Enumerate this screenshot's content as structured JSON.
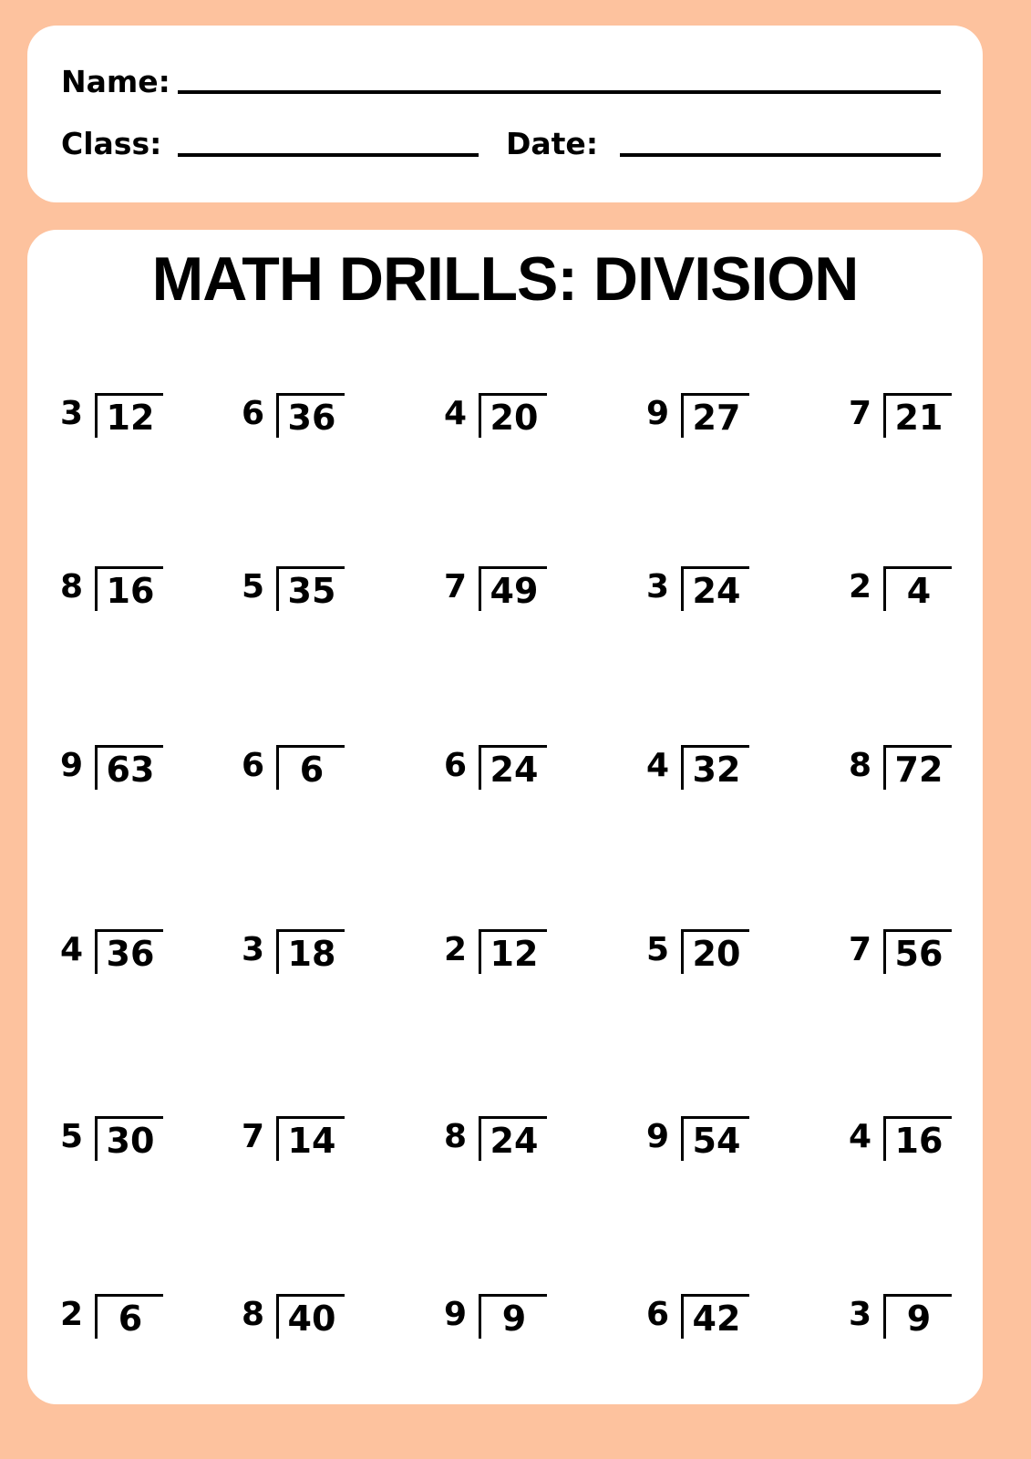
{
  "header": {
    "name_label": "Name:",
    "class_label": "Class:",
    "date_label": "Date:"
  },
  "title": "MATH DRILLS: DIVISION",
  "colors": {
    "background": "#fdc29e",
    "card": "#ffffff",
    "ink": "#000000"
  },
  "problems": [
    [
      {
        "divisor": "3",
        "dividend": "12"
      },
      {
        "divisor": "6",
        "dividend": "36"
      },
      {
        "divisor": "4",
        "dividend": "20"
      },
      {
        "divisor": "9",
        "dividend": "27"
      },
      {
        "divisor": "7",
        "dividend": "21"
      }
    ],
    [
      {
        "divisor": "8",
        "dividend": "16"
      },
      {
        "divisor": "5",
        "dividend": "35"
      },
      {
        "divisor": "7",
        "dividend": "49"
      },
      {
        "divisor": "3",
        "dividend": "24"
      },
      {
        "divisor": "2",
        "dividend": "4"
      }
    ],
    [
      {
        "divisor": "9",
        "dividend": "63"
      },
      {
        "divisor": "6",
        "dividend": "6"
      },
      {
        "divisor": "6",
        "dividend": "24"
      },
      {
        "divisor": "4",
        "dividend": "32"
      },
      {
        "divisor": "8",
        "dividend": "72"
      }
    ],
    [
      {
        "divisor": "4",
        "dividend": "36"
      },
      {
        "divisor": "3",
        "dividend": "18"
      },
      {
        "divisor": "2",
        "dividend": "12"
      },
      {
        "divisor": "5",
        "dividend": "20"
      },
      {
        "divisor": "7",
        "dividend": "56"
      }
    ],
    [
      {
        "divisor": "5",
        "dividend": "30"
      },
      {
        "divisor": "7",
        "dividend": "14"
      },
      {
        "divisor": "8",
        "dividend": "24"
      },
      {
        "divisor": "9",
        "dividend": "54"
      },
      {
        "divisor": "4",
        "dividend": "16"
      }
    ],
    [
      {
        "divisor": "2",
        "dividend": "6"
      },
      {
        "divisor": "8",
        "dividend": "40"
      },
      {
        "divisor": "9",
        "dividend": "9"
      },
      {
        "divisor": "6",
        "dividend": "42"
      },
      {
        "divisor": "3",
        "dividend": "9"
      }
    ]
  ]
}
